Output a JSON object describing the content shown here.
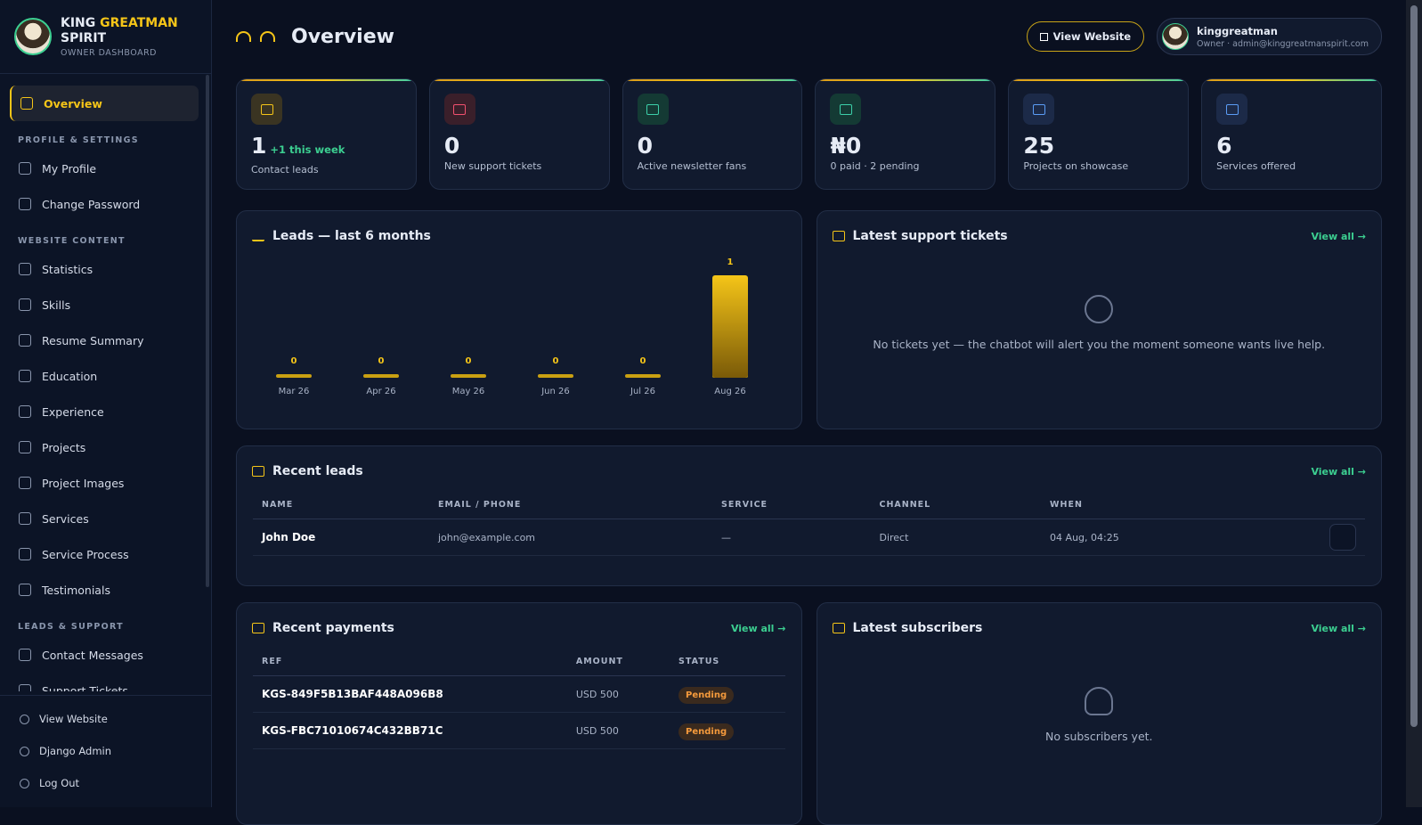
{
  "brand": {
    "name_1": "KING",
    "name_2": "GREATMAN",
    "name_3": "SPIRIT",
    "subtitle": "OWNER DASHBOARD"
  },
  "sidebar": {
    "active": "Overview",
    "sections": [
      {
        "title": "PROFILE & SETTINGS",
        "items": [
          "My Profile",
          "Change Password"
        ]
      },
      {
        "title": "WEBSITE CONTENT",
        "items": [
          "Statistics",
          "Skills",
          "Resume Summary",
          "Education",
          "Experience",
          "Projects",
          "Project Images",
          "Services",
          "Service Process",
          "Testimonials"
        ]
      },
      {
        "title": "LEADS & SUPPORT",
        "items": [
          "Contact Messages",
          "Support Tickets"
        ]
      }
    ],
    "footer": [
      "View Website",
      "Django Admin",
      "Log Out"
    ]
  },
  "header": {
    "title": "Overview",
    "button": "View Website",
    "user_name": "kinggreatman",
    "user_role": "Owner · admin@kinggreatmanspirit.com"
  },
  "stats": [
    {
      "value": 1,
      "extra": "+1 this week",
      "label": "Contact leads"
    },
    {
      "value": 0,
      "label": "New support tickets"
    },
    {
      "value": 0,
      "label": "Active newsletter fans"
    },
    {
      "value": "₦0",
      "label": "0 paid · 2 pending"
    },
    {
      "value": 25,
      "label": "Projects on showcase"
    },
    {
      "value": 6,
      "label": "Services offered"
    }
  ],
  "leads_chart": {
    "type": "bar",
    "title": "Leads — last 6 months",
    "categories": [
      "Mar 26",
      "Apr 26",
      "May 26",
      "Jun 26",
      "Jul 26",
      "Aug 26"
    ],
    "values": [
      0,
      0,
      0,
      0,
      0,
      1
    ],
    "color": "#f5c518"
  },
  "tickets": {
    "title": "Latest support tickets",
    "view_all": "View all →",
    "empty": "No tickets yet — the chatbot will alert you the moment someone wants live help."
  },
  "leads": {
    "title": "Recent leads",
    "view_all": "View all →",
    "columns": [
      "NAME",
      "EMAIL / PHONE",
      "SERVICE",
      "CHANNEL",
      "WHEN"
    ],
    "rows": [
      [
        "John Doe",
        "john@example.com",
        "—",
        "Direct",
        "04 Aug, 04:25"
      ]
    ]
  },
  "payments": {
    "title": "Recent payments",
    "view_all": "View all →",
    "columns": [
      "REF",
      "AMOUNT",
      "STATUS"
    ],
    "rows": [
      [
        "KGS-849F5B13BAF448A096B8",
        "USD 500",
        "Pending"
      ],
      [
        "KGS-FBC71010674C432BB71C",
        "USD 500",
        "Pending"
      ]
    ]
  },
  "subscribers": {
    "title": "Latest subscribers",
    "view_all": "View all →",
    "empty": "No subscribers yet."
  }
}
